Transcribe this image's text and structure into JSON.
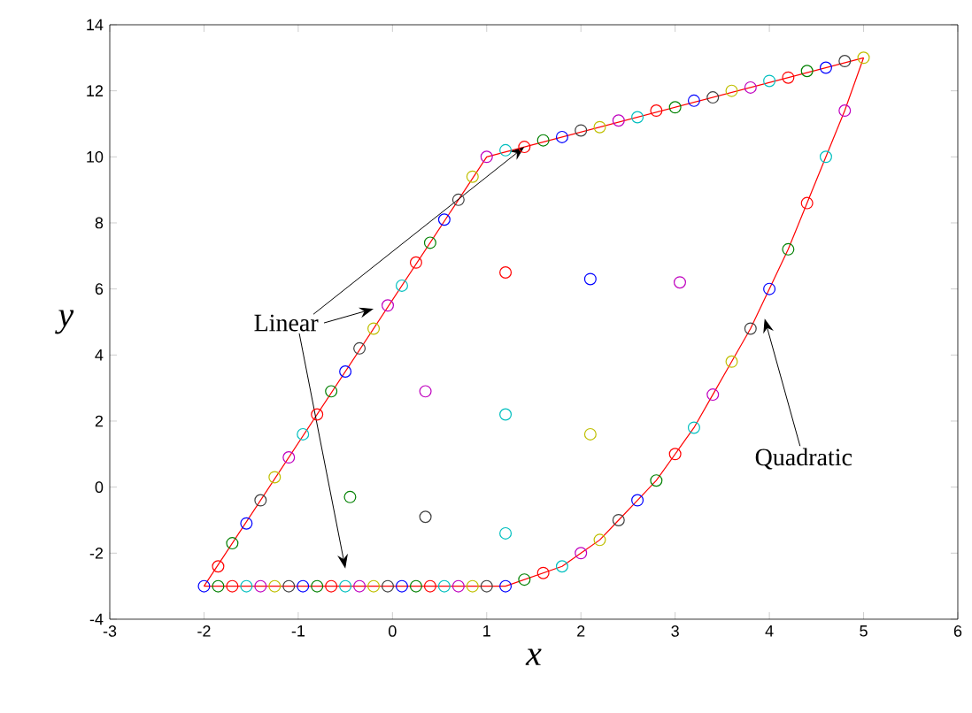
{
  "chart_data": {
    "type": "scatter",
    "xlabel": "x",
    "ylabel": "y",
    "xlim": [
      -3,
      6
    ],
    "ylim": [
      -4,
      14
    ],
    "xticks": [
      -3,
      -2,
      -1,
      0,
      1,
      2,
      3,
      4,
      5,
      6
    ],
    "yticks": [
      -4,
      -2,
      0,
      2,
      4,
      6,
      8,
      10,
      12,
      14
    ],
    "series": [
      {
        "type": "line",
        "marker": "none",
        "color": "#ff0000",
        "x": [
          -2,
          1,
          5
        ],
        "values": [
          -3,
          10,
          13
        ]
      },
      {
        "type": "line",
        "marker": "none",
        "color": "#ff0000",
        "x": [
          -2,
          1,
          1.2,
          1.4,
          1.6,
          1.8,
          2.0,
          2.2,
          2.4,
          2.6,
          2.8,
          3.0,
          3.2,
          3.4,
          3.6,
          3.8,
          4.0,
          4.2,
          4.4,
          4.6,
          4.8,
          5.0
        ],
        "values": [
          -3,
          -3,
          -3.0,
          -2.8,
          -2.6,
          -2.4,
          -2.0,
          -1.6,
          -1.0,
          -0.4,
          0.2,
          1.0,
          1.8,
          2.8,
          3.8,
          4.8,
          6.0,
          7.2,
          8.6,
          10.0,
          11.4,
          13.0
        ]
      },
      {
        "marker": "circle",
        "x": [
          -2.0,
          -1.85,
          -1.7,
          -1.55,
          -1.4,
          -1.25,
          -1.1,
          -0.95,
          -0.8,
          -0.65,
          -0.5,
          -0.35,
          -0.2,
          -0.05,
          0.1,
          0.25,
          0.4,
          0.55,
          0.7,
          0.85,
          1.0,
          1.2,
          1.4,
          1.6,
          1.8,
          2.0,
          2.2,
          2.4,
          2.6,
          2.8,
          3.0,
          3.2,
          3.4,
          3.6,
          3.8,
          4.0,
          4.2,
          4.4,
          4.6,
          4.8,
          5.0,
          -1.85,
          -1.7,
          -1.55,
          -1.4,
          -1.25,
          -1.1,
          -0.95,
          -0.8,
          -0.65,
          -0.5,
          -0.35,
          -0.2,
          -0.05,
          0.1,
          0.25,
          0.4,
          0.55,
          0.7,
          0.85,
          1.0,
          1.2,
          1.4,
          1.6,
          1.8,
          2.0,
          2.2,
          2.4,
          2.6,
          2.8,
          3.0,
          3.2,
          3.4,
          3.6,
          3.8,
          4.0,
          4.2,
          4.4,
          4.6,
          4.8,
          1.2,
          2.1,
          3.05,
          0.35,
          1.2,
          2.1,
          -0.45,
          0.35,
          1.2
        ],
        "values": [
          -3,
          -3,
          -3,
          -3,
          -3,
          -3,
          -3,
          -3,
          -3,
          -3,
          -3,
          -3,
          -3,
          -3,
          -3,
          -3,
          -3,
          -3,
          -3,
          -3,
          -3,
          -3.0,
          -2.8,
          -2.6,
          -2.4,
          -2.0,
          -1.6,
          -1.0,
          -0.4,
          0.2,
          1.0,
          1.8,
          2.8,
          3.8,
          4.8,
          6.0,
          7.2,
          8.6,
          10.0,
          11.4,
          13.0,
          -2.4,
          -1.7,
          -1.1,
          -0.4,
          0.3,
          0.9,
          1.6,
          2.2,
          2.9,
          3.5,
          4.2,
          4.8,
          5.5,
          6.1,
          6.8,
          7.4,
          8.1,
          8.7,
          9.4,
          10.0,
          10.2,
          10.3,
          10.5,
          10.6,
          10.8,
          10.9,
          11.1,
          11.2,
          11.4,
          11.5,
          11.7,
          11.8,
          12.0,
          12.1,
          12.3,
          12.4,
          12.6,
          12.7,
          12.9,
          6.5,
          6.3,
          6.2,
          2.9,
          2.2,
          1.6,
          -0.3,
          -0.9,
          -1.4
        ],
        "colors": [
          "#0000ff",
          "#008000",
          "#ff0000",
          "#00bfbf",
          "#bf00bf",
          "#bfbf00",
          "#404040",
          "#0000ff",
          "#008000",
          "#ff0000",
          "#00bfbf",
          "#bf00bf",
          "#bfbf00",
          "#404040",
          "#0000ff",
          "#008000",
          "#ff0000",
          "#00bfbf",
          "#bf00bf",
          "#bfbf00",
          "#404040",
          "#0000ff",
          "#008000",
          "#ff0000",
          "#00bfbf",
          "#bf00bf",
          "#bfbf00",
          "#404040",
          "#0000ff",
          "#008000",
          "#ff0000",
          "#00bfbf",
          "#bf00bf",
          "#bfbf00",
          "#404040",
          "#0000ff",
          "#008000",
          "#ff0000",
          "#00bfbf",
          "#bf00bf",
          "#bfbf00",
          "#ff0000",
          "#008000",
          "#0000ff",
          "#404040",
          "#bfbf00",
          "#bf00bf",
          "#00bfbf",
          "#ff0000",
          "#008000",
          "#0000ff",
          "#404040",
          "#bfbf00",
          "#bf00bf",
          "#00bfbf",
          "#ff0000",
          "#008000",
          "#0000ff",
          "#404040",
          "#bfbf00",
          "#bf00bf",
          "#00bfbf",
          "#ff0000",
          "#008000",
          "#0000ff",
          "#404040",
          "#bfbf00",
          "#bf00bf",
          "#00bfbf",
          "#ff0000",
          "#008000",
          "#0000ff",
          "#404040",
          "#bfbf00",
          "#bf00bf",
          "#00bfbf",
          "#ff0000",
          "#008000",
          "#0000ff",
          "#404040",
          "#ff0000",
          "#0000ff",
          "#bf00bf",
          "#bf00bf",
          "#00bfbf",
          "#bfbf00",
          "#008000",
          "#404040",
          "#00bfbf"
        ]
      }
    ],
    "annotations": [
      {
        "text": "Linear",
        "x": -0.2,
        "y": 5.4
      },
      {
        "text": "Quadratic",
        "x": 3.95,
        "y": 5.1
      }
    ]
  }
}
